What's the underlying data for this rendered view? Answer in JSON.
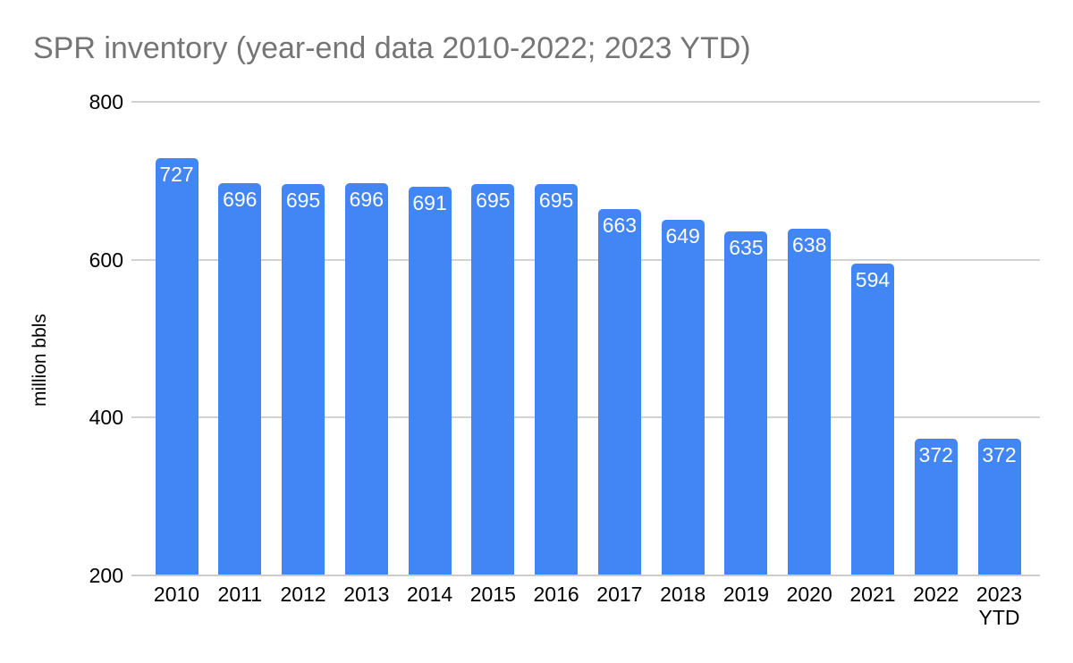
{
  "title": "SPR inventory (year-end data 2010-2022; 2023 YTD)",
  "chart_data": {
    "type": "bar",
    "title": "SPR inventory (year-end data 2010-2022; 2023 YTD)",
    "categories": [
      "2010",
      "2011",
      "2012",
      "2013",
      "2014",
      "2015",
      "2016",
      "2017",
      "2018",
      "2019",
      "2020",
      "2021",
      "2022",
      "2023 YTD"
    ],
    "values": [
      727,
      696,
      695,
      696,
      691,
      695,
      695,
      663,
      649,
      635,
      638,
      594,
      372,
      372
    ],
    "xlabel": "",
    "ylabel": "million bbls",
    "ylim": [
      200,
      800
    ],
    "yticks": [
      200,
      400,
      600,
      800
    ],
    "grid": "horizontal-only",
    "legend": "none",
    "bar_labels_position": "inside-top"
  },
  "colors": {
    "background": "#ffffff",
    "title_text": "#757575",
    "axis_text": "#000000",
    "gridline": "#d2d2d2",
    "baseline": "#cccccc",
    "bar": "#4285f4",
    "bar_label_text": "#ffffff"
  }
}
